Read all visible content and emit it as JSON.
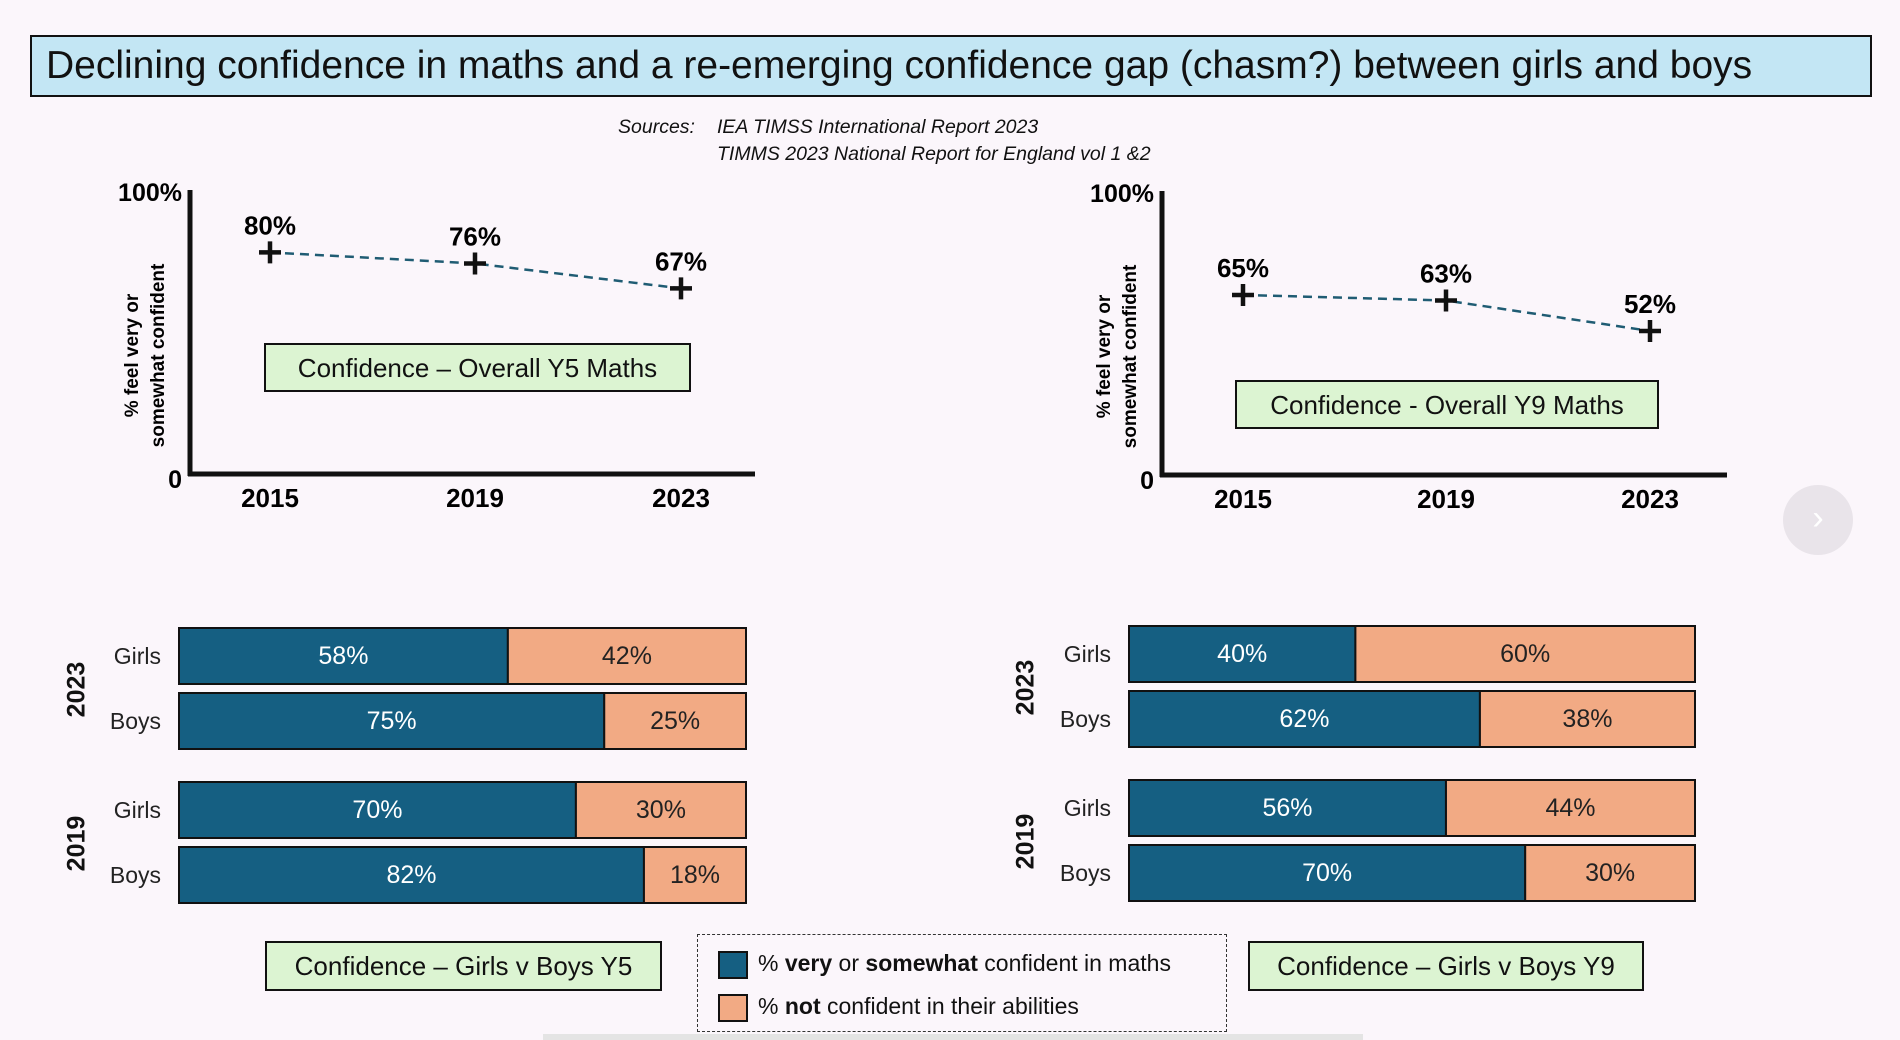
{
  "title": "Declining confidence in maths and a re-emerging confidence gap (chasm?) between girls and boys",
  "sources": {
    "label": "Sources:",
    "line1": "IEA TIMSS International Report 2023",
    "line2": "TIMMS 2023 National Report for England vol 1 &2"
  },
  "colors": {
    "confident": "#155f82",
    "not_confident": "#f2aa84",
    "trend_line": "#1f5c73",
    "box_green": "#dcf4d2",
    "title_blue": "#c3e6f4"
  },
  "chart_data": [
    {
      "type": "line",
      "title": "Confidence – Overall Y5 Maths",
      "ylabel_line1": "% feel very or",
      "ylabel_line2": "somewhat confident",
      "ylim": [
        0,
        100
      ],
      "y_ticks": [
        "0",
        "100%"
      ],
      "x": [
        "2015",
        "2019",
        "2023"
      ],
      "values": [
        80,
        76,
        67
      ],
      "labels": [
        "80%",
        "76%",
        "67%"
      ]
    },
    {
      "type": "line",
      "title": "Confidence - Overall Y9 Maths",
      "ylabel_line1": "% feel very or",
      "ylabel_line2": "somewhat confident",
      "ylim": [
        0,
        100
      ],
      "y_ticks": [
        "0",
        "100%"
      ],
      "x": [
        "2015",
        "2019",
        "2023"
      ],
      "values": [
        65,
        63,
        52
      ],
      "labels": [
        "65%",
        "63%",
        "52%"
      ]
    },
    {
      "type": "bar",
      "stacked": true,
      "orientation": "horizontal",
      "title": "Confidence – Girls v Boys Y5",
      "groups": [
        {
          "year": "2023",
          "categories": [
            "Girls",
            "Boys"
          ],
          "confident": [
            58,
            75
          ],
          "not_confident": [
            42,
            25
          ]
        },
        {
          "year": "2019",
          "categories": [
            "Girls",
            "Boys"
          ],
          "confident": [
            70,
            82
          ],
          "not_confident": [
            30,
            18
          ]
        }
      ]
    },
    {
      "type": "bar",
      "stacked": true,
      "orientation": "horizontal",
      "title": "Confidence – Girls v Boys Y9",
      "groups": [
        {
          "year": "2023",
          "categories": [
            "Girls",
            "Boys"
          ],
          "confident": [
            40,
            62
          ],
          "not_confident": [
            60,
            38
          ]
        },
        {
          "year": "2019",
          "categories": [
            "Girls",
            "Boys"
          ],
          "confident": [
            56,
            70
          ],
          "not_confident": [
            44,
            30
          ]
        }
      ]
    }
  ],
  "legend": {
    "confident": {
      "pre": "% ",
      "b1": "very",
      "mid": " or ",
      "b2": "somewhat",
      "post": " confident in maths"
    },
    "not_confident": {
      "pre": "% ",
      "b1": "not",
      "post": " confident in their abilities"
    }
  },
  "next_button": "›"
}
